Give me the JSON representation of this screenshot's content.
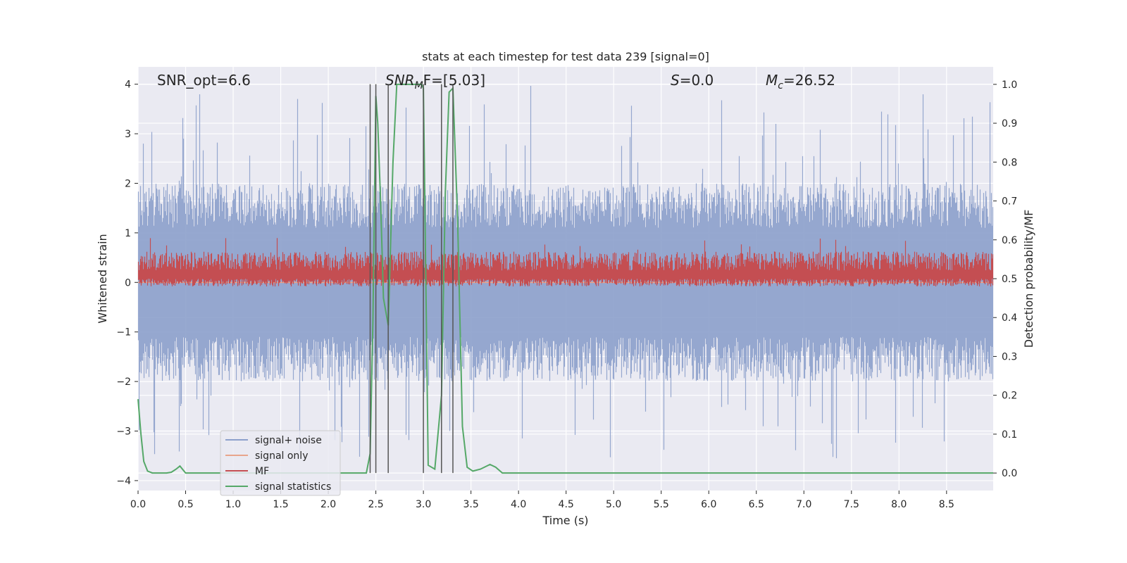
{
  "chart_data": {
    "type": "line",
    "title": "stats at each timestep for test data 239 [signal=0]",
    "xlabel": "Time (s)",
    "ylabel_left": "Whitened strain",
    "ylabel_right": "Detection probability/MF",
    "xlim": [
      0.0,
      8.99
    ],
    "ylim_left": [
      -4.2,
      4.35
    ],
    "ylim_right": [
      -0.045,
      1.045
    ],
    "x_ticks": [
      "0.0",
      "0.5",
      "1.0",
      "1.5",
      "2.0",
      "2.5",
      "3.0",
      "3.5",
      "4.0",
      "4.5",
      "5.0",
      "5.5",
      "6.0",
      "6.5",
      "7.0",
      "7.5",
      "8.0",
      "8.5"
    ],
    "y_ticks_left": [
      "4",
      "3",
      "2",
      "1",
      "0",
      "−1",
      "−2",
      "−3",
      "−4"
    ],
    "y_ticks_right": [
      "1.0",
      "0.9",
      "0.8",
      "0.7",
      "0.6",
      "0.5",
      "0.4",
      "0.3",
      "0.2",
      "0.1",
      "0.0"
    ],
    "grid": true,
    "legend_position": "lower-left",
    "annotations": {
      "snr_opt": "SNR_opt=6.6",
      "snr_mf_base": "SNR",
      "snr_mf_sub": "M",
      "snr_mf_rest": "F=[5.03]",
      "s_var": "S",
      "s_rest": "=0.0",
      "mc_var": "M",
      "mc_sub": "c",
      "mc_rest": "=26.52"
    },
    "vertical_lines_x": [
      2.44,
      2.5,
      2.63,
      3.0,
      3.19,
      3.31
    ],
    "series": [
      {
        "name": "signal+ noise",
        "color": "#8ca0cb",
        "axis": "left",
        "description_values": {
          "x_start": 0.0,
          "x_end": 8.99,
          "typical_min": -2.0,
          "typical_max": 2.0,
          "extreme_min": -3.55,
          "extreme_max": 4.0
        }
      },
      {
        "name": "signal only",
        "color": "#e8a58c",
        "axis": "left",
        "values_constant": 0.0
      },
      {
        "name": "MF",
        "color": "#c44e52",
        "axis": "right",
        "description_values": {
          "baseline": 0.5,
          "typical_min": 0.48,
          "typical_max": 0.57,
          "extreme_max": 0.61
        }
      },
      {
        "name": "signal statistics",
        "color": "#55a868",
        "axis": "right",
        "x": [
          0.0,
          0.03,
          0.06,
          0.1,
          0.15,
          0.2,
          0.25,
          0.3,
          0.35,
          0.4,
          0.44,
          0.5,
          0.55,
          0.6,
          1.0,
          1.5,
          2.0,
          2.4,
          2.44,
          2.47,
          2.5,
          2.52,
          2.55,
          2.58,
          2.63,
          2.68,
          2.72,
          2.8,
          2.9,
          2.98,
          3.0,
          3.05,
          3.12,
          3.19,
          3.23,
          3.27,
          3.31,
          3.36,
          3.41,
          3.46,
          3.52,
          3.6,
          3.7,
          3.76,
          3.83,
          3.9,
          4.5,
          5.0,
          6.0,
          7.0,
          8.0,
          8.99
        ],
        "y": [
          0.19,
          0.1,
          0.03,
          0.005,
          0.0,
          0.0,
          0.0,
          0.0,
          0.002,
          0.01,
          0.018,
          0.0,
          0.0,
          0.0,
          0.0,
          0.0,
          0.0,
          0.0,
          0.05,
          0.4,
          0.97,
          0.9,
          0.7,
          0.45,
          0.38,
          0.8,
          1.0,
          1.0,
          1.0,
          1.0,
          0.99,
          0.02,
          0.01,
          0.2,
          0.72,
          0.98,
          0.99,
          0.65,
          0.12,
          0.015,
          0.005,
          0.01,
          0.022,
          0.015,
          0.0,
          0.0,
          0.0,
          0.0,
          0.0,
          0.0,
          0.0,
          0.0
        ]
      }
    ]
  }
}
